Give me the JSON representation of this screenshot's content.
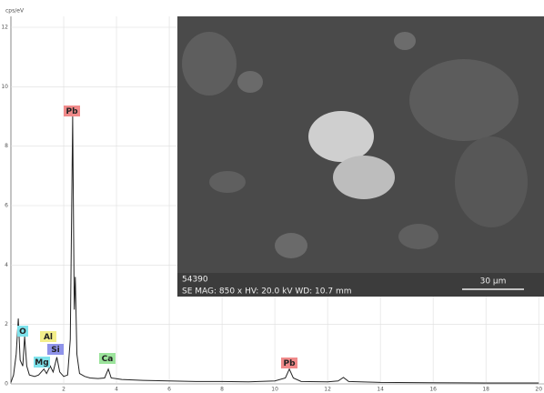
{
  "chart_data": {
    "type": "line",
    "ylabel": "cps/eV",
    "x": [
      0.0,
      0.1,
      0.2,
      0.28,
      0.35,
      0.45,
      0.52,
      0.6,
      0.7,
      0.9,
      1.05,
      1.25,
      1.35,
      1.49,
      1.6,
      1.74,
      1.85,
      2.0,
      2.15,
      2.25,
      2.34,
      2.4,
      2.44,
      2.5,
      2.6,
      2.8,
      3.0,
      3.3,
      3.55,
      3.69,
      3.8,
      4.2,
      5,
      6,
      7,
      8,
      9,
      10,
      10.4,
      10.55,
      10.7,
      11,
      12,
      12.4,
      12.6,
      12.8,
      14,
      16,
      18,
      20
    ],
    "values": [
      0.05,
      0.3,
      1.0,
      2.2,
      0.8,
      0.6,
      1.6,
      0.6,
      0.3,
      0.25,
      0.3,
      0.5,
      0.35,
      0.6,
      0.4,
      0.9,
      0.4,
      0.25,
      0.3,
      1.5,
      9.0,
      2.5,
      3.6,
      1.0,
      0.35,
      0.25,
      0.2,
      0.18,
      0.2,
      0.5,
      0.2,
      0.15,
      0.12,
      0.1,
      0.08,
      0.08,
      0.07,
      0.1,
      0.2,
      0.5,
      0.2,
      0.08,
      0.07,
      0.1,
      0.22,
      0.08,
      0.05,
      0.04,
      0.03,
      0.03
    ],
    "color": "#222222",
    "xlim": [
      0,
      20.2
    ],
    "xticks": [
      2,
      4,
      6,
      8,
      10,
      12,
      14,
      16,
      18,
      20
    ],
    "ylim": [
      0,
      12
    ],
    "yticks": [
      0,
      2,
      4,
      6,
      8,
      10,
      12
    ],
    "grid": true,
    "annotations": [
      {
        "text": "O",
        "color": "#7fe3ec"
      },
      {
        "text": "Mg",
        "color": "#7fe3ec"
      },
      {
        "text": "Al",
        "color": "#f3ee8a"
      },
      {
        "text": "Si",
        "color": "#8f93ea"
      },
      {
        "text": "Pb",
        "color": "#f08a8a"
      },
      {
        "text": "Ca",
        "color": "#9be39b"
      },
      {
        "text": "Pb",
        "color": "#f08a8a"
      }
    ],
    "inset": {
      "id": "54390",
      "info": "SE  MAG: 850 x  HV: 20.0 kV  WD: 10.7 mm",
      "scale": "30 µm"
    }
  }
}
